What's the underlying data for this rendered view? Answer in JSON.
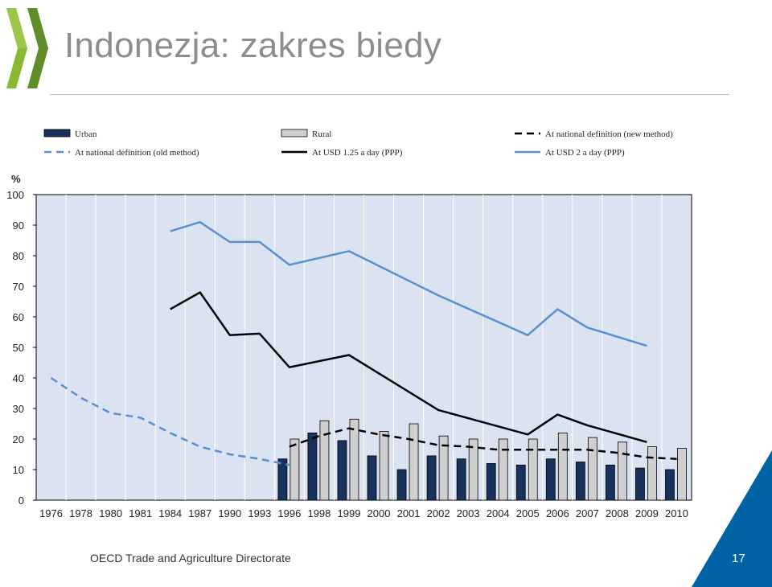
{
  "slide": {
    "title": "Indonezja: zakres biedy",
    "footer": "OECD Trade and Agriculture Directorate",
    "page_number": "17"
  },
  "colors": {
    "urban": "#17325c",
    "rural": "#cfcfcf",
    "usd2": "#5b8fd2",
    "national_old": "#5b8fd2",
    "usd125": "#000000",
    "national_new": "#000000",
    "plot_bg": "#dbe3f0",
    "title": "#8d8d8d",
    "accent": "#0063a6"
  },
  "chart_data": {
    "type": "bar",
    "title": "",
    "ylabel": "%",
    "xlabel": "",
    "ylim": [
      0,
      100
    ],
    "yticks": [
      0,
      10,
      20,
      30,
      40,
      50,
      60,
      70,
      80,
      90,
      100
    ],
    "grid": "vertical",
    "legend": "top",
    "categories": [
      "1976",
      "1978",
      "1980",
      "1981",
      "1984",
      "1987",
      "1990",
      "1993",
      "1996",
      "1998",
      "1999",
      "2000",
      "2001",
      "2002",
      "2003",
      "2004",
      "2005",
      "2006",
      "2007",
      "2008",
      "2009",
      "2010"
    ],
    "series": [
      {
        "name": "Urban",
        "kind": "bar",
        "color_key": "urban",
        "values": [
          null,
          null,
          null,
          null,
          null,
          null,
          null,
          null,
          13.5,
          22,
          19.5,
          14.5,
          10,
          14.5,
          13.5,
          12,
          11.5,
          13.5,
          12.5,
          11.5,
          10.5,
          10
        ]
      },
      {
        "name": "Rural",
        "kind": "bar",
        "color_key": "rural",
        "values": [
          null,
          null,
          null,
          null,
          null,
          null,
          null,
          null,
          20,
          26,
          26.5,
          22.5,
          25,
          21,
          20,
          20,
          20,
          22,
          20.5,
          19,
          17.5,
          17
        ]
      },
      {
        "name": "At national definition (new method)",
        "kind": "line",
        "dash": "dashed",
        "color_key": "national_new",
        "values": [
          null,
          null,
          null,
          null,
          null,
          null,
          null,
          null,
          17.5,
          21,
          23.5,
          21.5,
          20,
          18,
          17.5,
          16.5,
          16.5,
          16.5,
          16.5,
          15.5,
          14,
          13.5
        ]
      },
      {
        "name": "At national definition (old method)",
        "kind": "line",
        "dash": "dashed",
        "color_key": "national_old",
        "values": [
          40,
          33.5,
          28.5,
          27,
          22,
          17.5,
          15,
          13.5,
          11.5,
          null,
          null,
          null,
          null,
          null,
          null,
          null,
          null,
          null,
          null,
          null,
          null,
          null
        ]
      },
      {
        "name": "At USD 1.25 a day (PPP)",
        "kind": "line",
        "dash": "solid",
        "color_key": "usd125",
        "values": [
          null,
          null,
          null,
          null,
          62.5,
          68,
          54,
          54.5,
          43.5,
          null,
          47.5,
          null,
          null,
          29.5,
          null,
          null,
          21.5,
          28,
          24.5,
          null,
          19,
          null
        ]
      },
      {
        "name": "At USD 2 a day (PPP)",
        "kind": "line",
        "dash": "solid",
        "color_key": "usd2",
        "values": [
          null,
          null,
          null,
          null,
          88,
          91,
          84.5,
          84.5,
          77,
          null,
          81.5,
          null,
          null,
          67,
          null,
          null,
          54,
          62.5,
          56.5,
          null,
          50.5,
          null
        ]
      }
    ],
    "legend_layout": [
      [
        0,
        1,
        2
      ],
      [
        3,
        4,
        5
      ]
    ]
  }
}
